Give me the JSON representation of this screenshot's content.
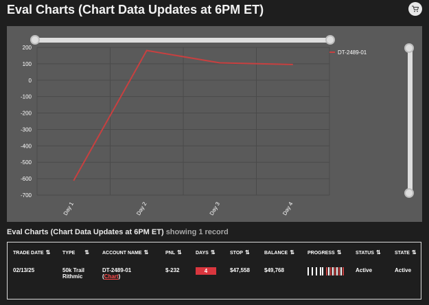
{
  "page": {
    "title": "Eval Charts (Chart Data Updates at 6PM ET)",
    "cart_icon": "cart-icon"
  },
  "chart_data": {
    "type": "line",
    "categories": [
      "Day 1",
      "Day 2",
      "Day 3",
      "Day 4"
    ],
    "series": [
      {
        "name": "DT-2489-01",
        "values": [
          -612,
          181,
          106,
          96
        ],
        "color": "#c84040"
      }
    ],
    "yticks": [
      200,
      100,
      0,
      -100,
      -200,
      -300,
      -400,
      -500,
      -600,
      -700
    ],
    "ylim": [
      -700,
      200
    ],
    "grid": true,
    "legend": "top-right"
  },
  "section": {
    "title": "Eval Charts (Chart Data Updates at 6PM ET)",
    "suffix": "showing 1 record"
  },
  "table": {
    "headers": [
      "TRADE DATE",
      "TYPE",
      "ACCOUNT NAME",
      "PNL",
      "DAYS",
      "STOP",
      "BALANCE",
      "PROGRESS",
      "STATUS",
      "STATE"
    ],
    "row": {
      "trade_date": "02/13/25",
      "type_line1": "50k Trail",
      "type_line2": "Rithmic",
      "account_name": "DT-2489-01",
      "chart_link_open": "(",
      "chart_link": "Chart",
      "chart_link_close": ")",
      "pnl": "$-232",
      "days": "4",
      "stop": "$47,558",
      "balance": "$49,768",
      "status": "Active",
      "state": "Active"
    }
  },
  "colors": {
    "background": "#1e1e1e",
    "chart_panel": "#5a5a5a",
    "series": "#c84040",
    "badge": "#d9363e"
  }
}
